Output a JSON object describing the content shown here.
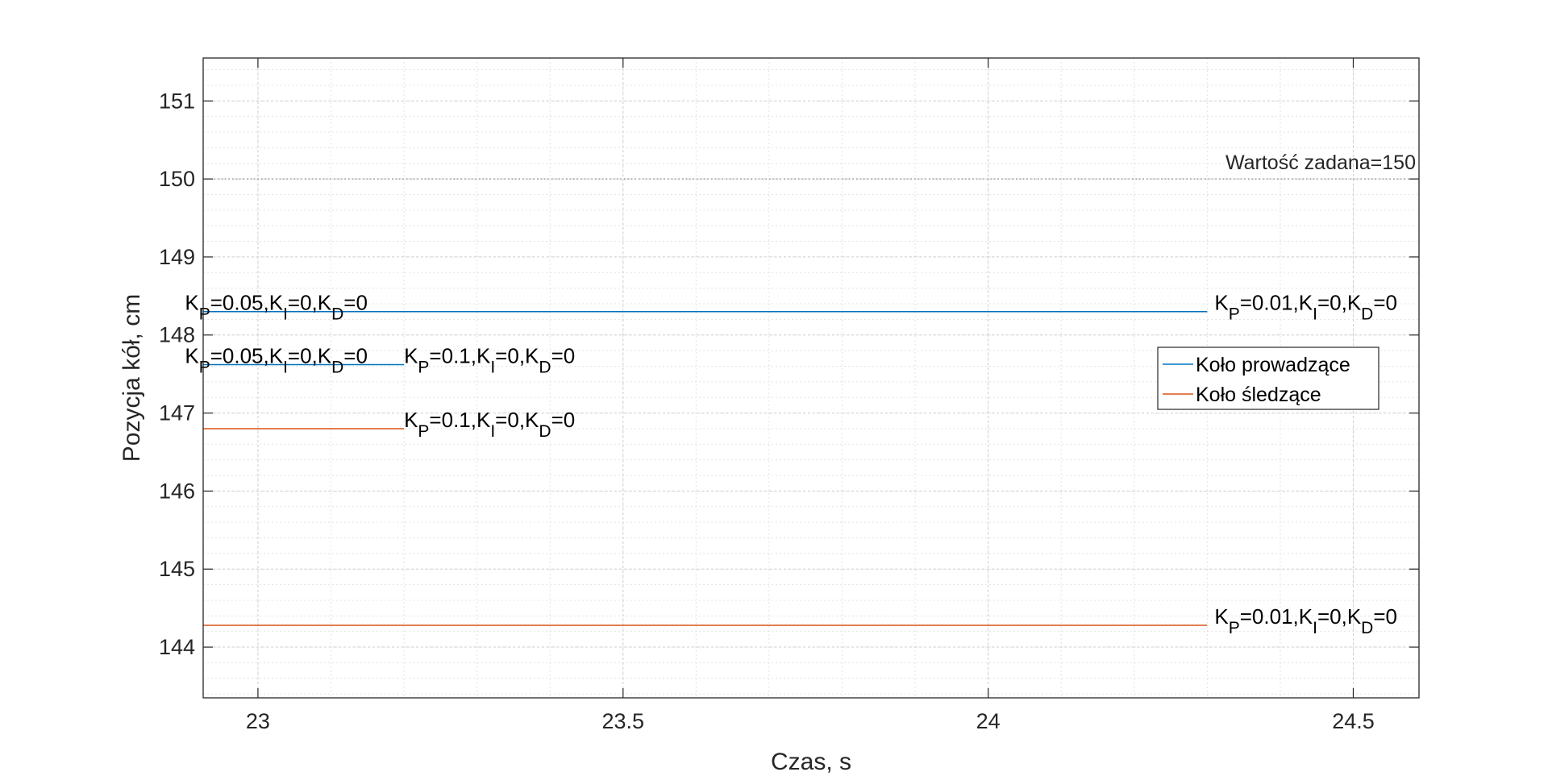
{
  "chart_data": {
    "type": "line",
    "title": "",
    "xlabel": "Czas, s",
    "ylabel": "Pozycja kół, cm",
    "xlim": [
      22.925,
      24.59
    ],
    "ylim": [
      143.35,
      151.55
    ],
    "xticks": [
      23,
      23.5,
      24,
      24.5
    ],
    "xtick_labels": [
      "23",
      "23.5",
      "24",
      "24.5"
    ],
    "yticks": [
      144,
      145,
      146,
      147,
      148,
      149,
      150,
      151
    ],
    "ytick_labels": [
      "144",
      "145",
      "146",
      "147",
      "148",
      "149",
      "150",
      "151"
    ],
    "x_minor_step": 0.1,
    "y_minor_step": 0.2,
    "grid": true,
    "minor_grid": true,
    "legend_position": "right",
    "series": [
      {
        "name": "Koło prowadzące",
        "color": "#0072BD",
        "group": "leading",
        "x": [
          22.925,
          24.3
        ],
        "y": [
          148.3,
          148.3
        ],
        "label": {
          "base": "K",
          "parts": [
            [
              "K",
              "P",
              "=0.01,"
            ],
            [
              "K",
              "I",
              "=0,"
            ],
            [
              "K",
              "D",
              "=0"
            ]
          ]
        }
      },
      {
        "color": "#0072BD",
        "group": "leading",
        "x": [
          22.925,
          23.2
        ],
        "y": [
          147.62,
          147.62
        ]
      },
      {
        "name": "Koło śledzące",
        "color": "#D95319",
        "group": "following",
        "x": [
          22.925,
          24.3
        ],
        "y": [
          144.28,
          144.28
        ]
      },
      {
        "color": "#D95319",
        "group": "following",
        "x": [
          22.925,
          23.2
        ],
        "y": [
          146.8,
          146.8
        ]
      }
    ],
    "setpoint": {
      "value": 150,
      "text": "Wartość zadana=150",
      "color": "#808080"
    },
    "annotations": [
      {
        "x": 22.9,
        "y": 148.3,
        "segments": [
          [
            "K",
            "P",
            "=0.05,"
          ],
          [
            "K",
            "I",
            "=0,"
          ],
          [
            "K",
            "D",
            "=0"
          ]
        ]
      },
      {
        "x": 24.31,
        "y": 148.3,
        "segments": [
          [
            "K",
            "P",
            "=0.01,"
          ],
          [
            "K",
            "I",
            "=0,"
          ],
          [
            "K",
            "D",
            "=0"
          ]
        ]
      },
      {
        "x": 22.9,
        "y": 147.62,
        "segments": [
          [
            "K",
            "P",
            "=0.05,"
          ],
          [
            "K",
            "I",
            "=0,"
          ],
          [
            "K",
            "D",
            "=0"
          ]
        ]
      },
      {
        "x": 23.2,
        "y": 147.62,
        "segments": [
          [
            "K",
            "P",
            "=0.1,"
          ],
          [
            "K",
            "I",
            "=0,"
          ],
          [
            "K",
            "D",
            "=0"
          ]
        ]
      },
      {
        "x": 23.2,
        "y": 146.8,
        "segments": [
          [
            "K",
            "P",
            "=0.1,"
          ],
          [
            "K",
            "I",
            "=0,"
          ],
          [
            "K",
            "D",
            "=0"
          ]
        ]
      },
      {
        "x": 24.31,
        "y": 144.28,
        "segments": [
          [
            "K",
            "P",
            "=0.01,"
          ],
          [
            "K",
            "I",
            "=0,"
          ],
          [
            "K",
            "D",
            "=0"
          ]
        ]
      }
    ],
    "legend": [
      {
        "label": "Koło prowadzące",
        "color": "#0072BD"
      },
      {
        "label": "Koło śledzące",
        "color": "#D95319"
      }
    ]
  }
}
